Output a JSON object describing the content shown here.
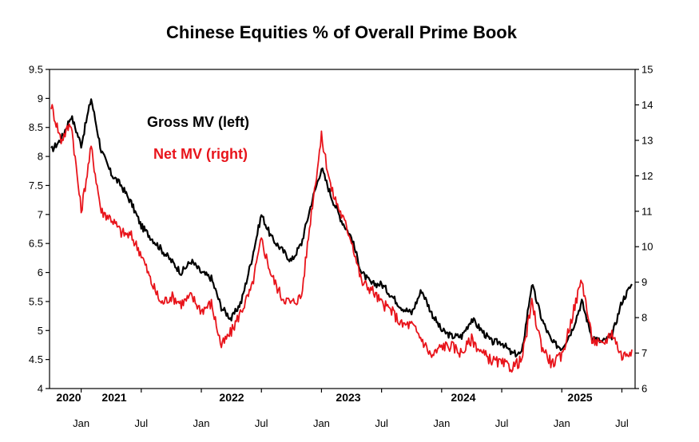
{
  "chart_data": {
    "type": "line",
    "title": "Chinese Equities % of Overall Prime Book",
    "y_left": {
      "min": 4,
      "max": 9.5,
      "ticks": [
        "9.5",
        "9",
        "8.5",
        "8",
        "7.5",
        "7",
        "6.5",
        "6",
        "5.5",
        "5",
        "4.5",
        "4"
      ]
    },
    "y_right": {
      "min": 6,
      "max": 15,
      "ticks": [
        "15",
        "14",
        "13",
        "12",
        "11",
        "10",
        "9",
        "8",
        "7",
        "6"
      ]
    },
    "x_month_labels": [
      "Jan",
      "Jul",
      "Jan",
      "Jul",
      "Jan",
      "Jul",
      "Jan",
      "Jul",
      "Jan",
      "Jul"
    ],
    "x_year_labels": [
      "2020",
      "2021",
      "2022",
      "2023",
      "2024",
      "2025"
    ],
    "x_range": [
      "2020-10",
      "2025-08"
    ],
    "grid": false,
    "legend_placement": "top-left inside plot",
    "series": [
      {
        "name": "Gross MV (left)",
        "axis": "left",
        "color": "#000000",
        "points": [
          [
            "2020-10",
            8.1
          ],
          [
            "2020-11",
            8.3
          ],
          [
            "2020-12",
            8.7
          ],
          [
            "2021-01",
            8.2
          ],
          [
            "2021-02",
            9.0
          ],
          [
            "2021-03",
            8.1
          ],
          [
            "2021-04",
            7.7
          ],
          [
            "2021-05",
            7.5
          ],
          [
            "2021-06",
            7.2
          ],
          [
            "2021-07",
            6.8
          ],
          [
            "2021-08",
            6.6
          ],
          [
            "2021-09",
            6.4
          ],
          [
            "2021-10",
            6.2
          ],
          [
            "2021-11",
            6.0
          ],
          [
            "2021-12",
            6.2
          ],
          [
            "2022-01",
            6.0
          ],
          [
            "2022-02",
            5.9
          ],
          [
            "2022-03",
            5.4
          ],
          [
            "2022-04",
            5.2
          ],
          [
            "2022-05",
            5.5
          ],
          [
            "2022-06",
            6.2
          ],
          [
            "2022-07",
            7.0
          ],
          [
            "2022-08",
            6.6
          ],
          [
            "2022-09",
            6.4
          ],
          [
            "2022-10",
            6.2
          ],
          [
            "2022-11",
            6.5
          ],
          [
            "2022-12",
            7.2
          ],
          [
            "2023-01",
            7.8
          ],
          [
            "2023-02",
            7.3
          ],
          [
            "2023-03",
            6.9
          ],
          [
            "2023-04",
            6.6
          ],
          [
            "2023-05",
            6.0
          ],
          [
            "2023-06",
            5.8
          ],
          [
            "2023-07",
            5.8
          ],
          [
            "2023-08",
            5.6
          ],
          [
            "2023-09",
            5.4
          ],
          [
            "2023-10",
            5.3
          ],
          [
            "2023-11",
            5.7
          ],
          [
            "2023-12",
            5.3
          ],
          [
            "2024-01",
            5.0
          ],
          [
            "2024-02",
            4.9
          ],
          [
            "2024-03",
            4.9
          ],
          [
            "2024-04",
            5.2
          ],
          [
            "2024-05",
            5.0
          ],
          [
            "2024-06",
            4.8
          ],
          [
            "2024-07",
            4.8
          ],
          [
            "2024-08",
            4.6
          ],
          [
            "2024-09",
            4.6
          ],
          [
            "2024-10",
            5.8
          ],
          [
            "2024-11",
            5.2
          ],
          [
            "2024-12",
            4.8
          ],
          [
            "2025-01",
            4.7
          ],
          [
            "2025-02",
            5.0
          ],
          [
            "2025-03",
            5.5
          ],
          [
            "2025-04",
            4.9
          ],
          [
            "2025-05",
            4.8
          ],
          [
            "2025-06",
            4.9
          ],
          [
            "2025-07",
            5.5
          ],
          [
            "2025-08",
            5.8
          ]
        ]
      },
      {
        "name": "Net MV (right)",
        "axis": "right",
        "color": "#e8141b",
        "points": [
          [
            "2020-10",
            14.0
          ],
          [
            "2020-11",
            13.0
          ],
          [
            "2020-12",
            13.5
          ],
          [
            "2021-01",
            11.0
          ],
          [
            "2021-02",
            12.8
          ],
          [
            "2021-03",
            11.0
          ],
          [
            "2021-04",
            10.8
          ],
          [
            "2021-05",
            10.4
          ],
          [
            "2021-06",
            10.3
          ],
          [
            "2021-07",
            9.8
          ],
          [
            "2021-08",
            9.0
          ],
          [
            "2021-09",
            8.4
          ],
          [
            "2021-10",
            8.6
          ],
          [
            "2021-11",
            8.4
          ],
          [
            "2021-12",
            8.6
          ],
          [
            "2022-01",
            8.2
          ],
          [
            "2022-02",
            8.4
          ],
          [
            "2022-03",
            7.2
          ],
          [
            "2022-04",
            7.6
          ],
          [
            "2022-05",
            8.2
          ],
          [
            "2022-06",
            8.8
          ],
          [
            "2022-07",
            10.2
          ],
          [
            "2022-08",
            9.2
          ],
          [
            "2022-09",
            8.6
          ],
          [
            "2022-10",
            8.4
          ],
          [
            "2022-11",
            8.6
          ],
          [
            "2022-12",
            11.0
          ],
          [
            "2023-01",
            13.1
          ],
          [
            "2023-02",
            11.6
          ],
          [
            "2023-03",
            10.9
          ],
          [
            "2023-04",
            10.2
          ],
          [
            "2023-05",
            9.0
          ],
          [
            "2023-06",
            8.8
          ],
          [
            "2023-07",
            8.4
          ],
          [
            "2023-08",
            8.2
          ],
          [
            "2023-09",
            7.8
          ],
          [
            "2023-10",
            7.8
          ],
          [
            "2023-11",
            7.4
          ],
          [
            "2023-12",
            6.9
          ],
          [
            "2024-01",
            7.2
          ],
          [
            "2024-02",
            7.2
          ],
          [
            "2024-03",
            7.0
          ],
          [
            "2024-04",
            7.4
          ],
          [
            "2024-05",
            7.0
          ],
          [
            "2024-06",
            6.8
          ],
          [
            "2024-07",
            6.7
          ],
          [
            "2024-08",
            6.6
          ],
          [
            "2024-09",
            6.8
          ],
          [
            "2024-10",
            8.4
          ],
          [
            "2024-11",
            7.2
          ],
          [
            "2024-12",
            6.7
          ],
          [
            "2025-01",
            6.9
          ],
          [
            "2025-02",
            8.0
          ],
          [
            "2025-03",
            9.1
          ],
          [
            "2025-04",
            7.4
          ],
          [
            "2025-05",
            7.2
          ],
          [
            "2025-06",
            7.6
          ],
          [
            "2025-07",
            6.9
          ],
          [
            "2025-08",
            7.1
          ]
        ]
      }
    ]
  }
}
